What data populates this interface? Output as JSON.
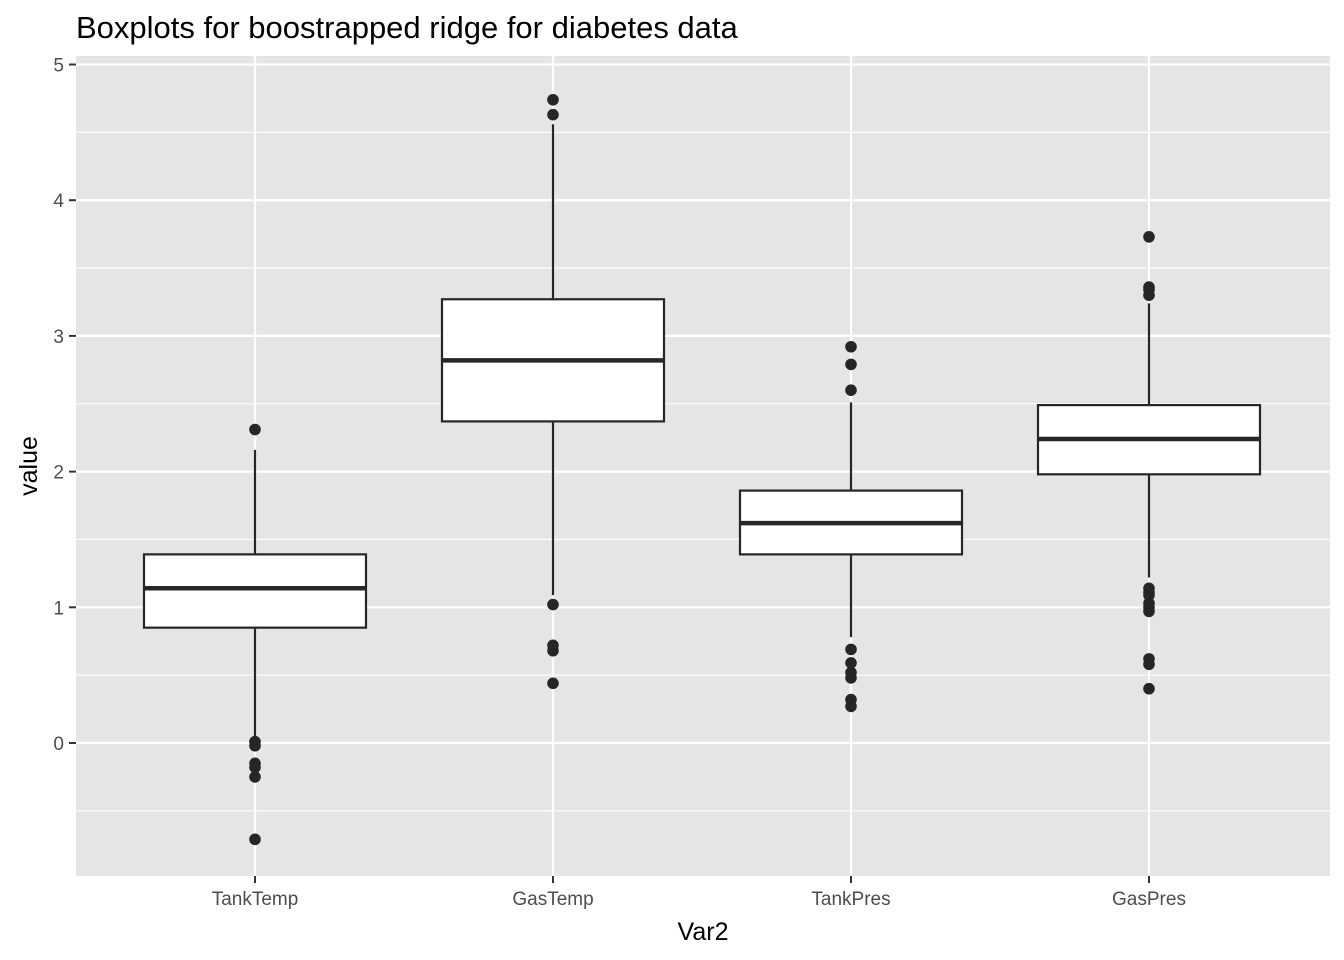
{
  "chart_data": {
    "type": "boxplot",
    "title": "Boxplots for boostrapped ridge for diabetes data",
    "xlabel": "Var2",
    "ylabel": "value",
    "ylim": [
      -0.97,
      5.0
    ],
    "yticks": [
      0,
      1,
      2,
      3,
      4,
      5
    ],
    "grid": true,
    "categories": [
      "TankTemp",
      "GasTemp",
      "TankPres",
      "GasPres"
    ],
    "boxes": [
      {
        "category": "TankTemp",
        "whisker_low": 0.02,
        "q1": 0.85,
        "median": 1.14,
        "q3": 1.39,
        "whisker_high": 2.16,
        "outliers": [
          2.31,
          0.01,
          -0.02,
          -0.15,
          -0.18,
          -0.25,
          -0.71
        ]
      },
      {
        "category": "GasTemp",
        "whisker_low": 1.09,
        "q1": 2.37,
        "median": 2.82,
        "q3": 3.27,
        "whisker_high": 4.56,
        "outliers": [
          4.74,
          4.63,
          1.02,
          0.72,
          0.68,
          0.44
        ]
      },
      {
        "category": "TankPres",
        "whisker_low": 0.78,
        "q1": 1.39,
        "median": 1.62,
        "q3": 1.86,
        "whisker_high": 2.51,
        "outliers": [
          2.92,
          2.79,
          2.6,
          0.69,
          0.59,
          0.52,
          0.48,
          0.32,
          0.27
        ]
      },
      {
        "category": "GasPres",
        "whisker_low": 1.22,
        "q1": 1.98,
        "median": 2.24,
        "q3": 2.49,
        "whisker_high": 3.24,
        "outliers": [
          3.73,
          3.36,
          3.34,
          3.3,
          1.14,
          1.11,
          1.09,
          1.03,
          1.0,
          0.97,
          0.62,
          0.58,
          0.4
        ]
      }
    ],
    "colors": {
      "panel_background": "#e5e5e5",
      "grid": "#ffffff",
      "box_fill": "#ffffff",
      "box_stroke": "#262626",
      "outlier": "#262626",
      "tick_text": "#4d4d4d",
      "tick_mark": "#333333"
    }
  }
}
